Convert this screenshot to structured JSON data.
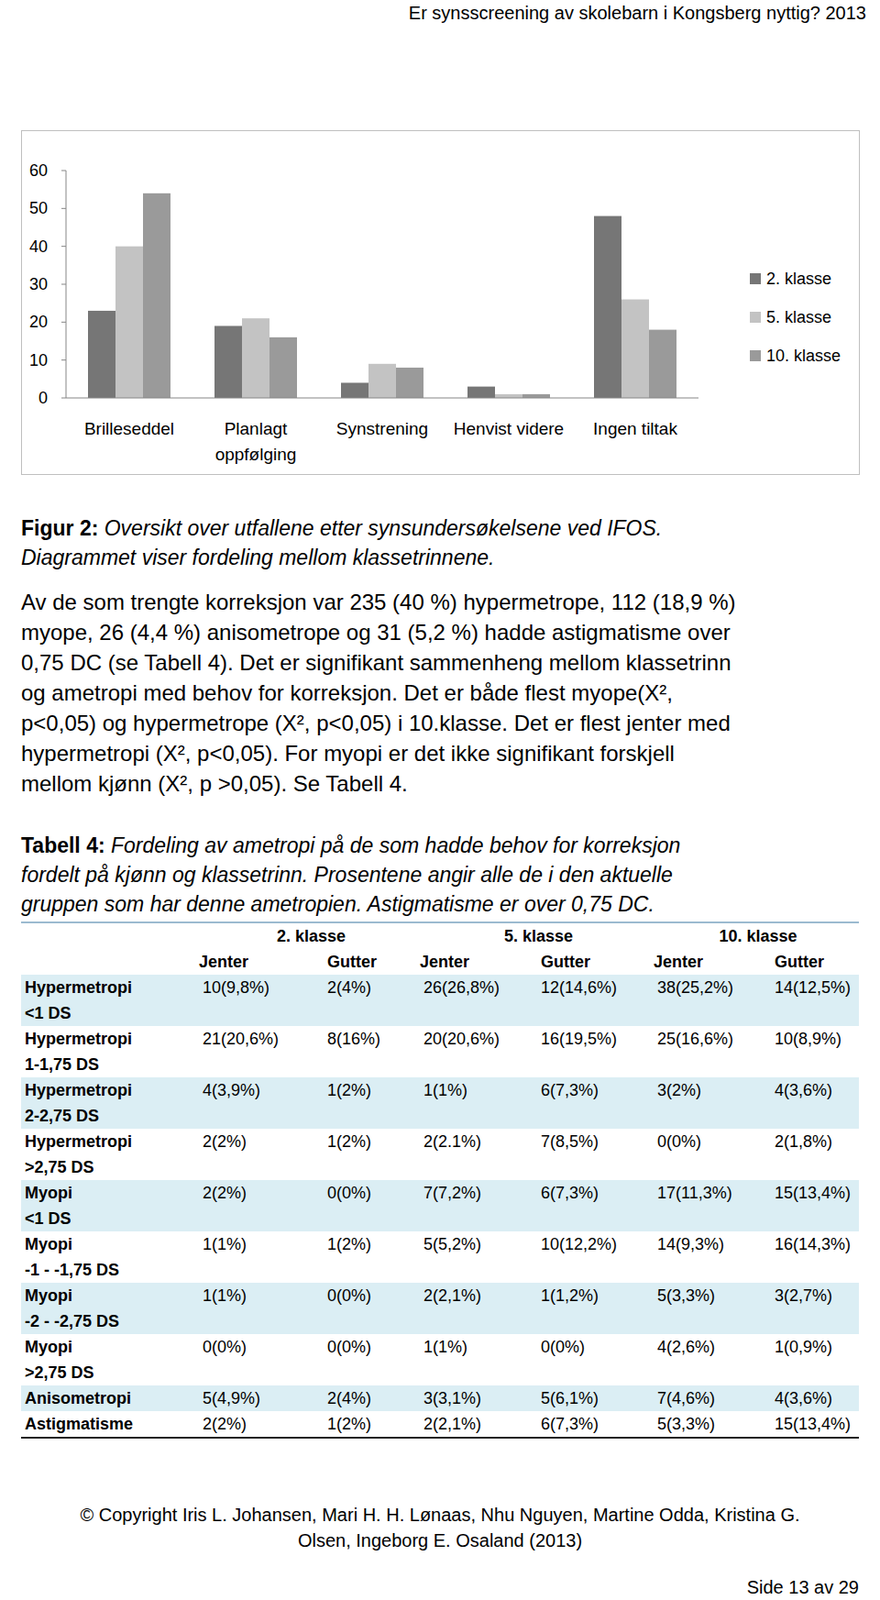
{
  "header": "Er synsscreening av skolebarn i Kongsberg nyttig? 2013",
  "chart_data": {
    "type": "bar",
    "categories": [
      "Brilleseddel",
      "Planlagt oppfølging",
      "Synstrening",
      "Henvist videre",
      "Ingen tiltak"
    ],
    "series": [
      {
        "name": "2. klasse",
        "color": "#767676",
        "values": [
          23,
          19,
          4,
          3,
          48
        ]
      },
      {
        "name": "5. klasse",
        "color": "#c3c3c3",
        "values": [
          40,
          21,
          9,
          1,
          26
        ]
      },
      {
        "name": "10. klasse",
        "color": "#9a9a9a",
        "values": [
          54,
          16,
          8,
          1,
          18
        ]
      }
    ],
    "ylim": [
      0,
      60
    ],
    "yticks": [
      0,
      10,
      20,
      30,
      40,
      50,
      60
    ],
    "grid": false,
    "legend": "right"
  },
  "figure_caption": {
    "label": "Figur 2:",
    "lines": [
      "Oversikt over utfallene etter synsundersøkelsene ved IFOS.",
      "Diagrammet viser fordeling mellom klassetrinnene."
    ]
  },
  "paragraph": [
    "Av de som trengte korreksjon var 235 (40 %) hypermetrope, 112 (18,9 %)",
    "myope, 26 (4,4 %) anisometrope og 31 (5,2 %) hadde astigmatisme over",
    "0,75 DC (se Tabell 4). Det er signifikant sammenheng mellom klassetrinn",
    "og ametropi med behov for korreksjon. Det er både flest myope(X², ",
    "p<0,05) og hypermetrope (X², p<0,05) i 10.klasse. Det er flest jenter med",
    "hypermetropi (X², p<0,05). For myopi er det ikke signifikant forskjell",
    "mellom kjønn (X², p >0,05). Se Tabell 4."
  ],
  "table_caption": {
    "label": "Tabell 4:",
    "lines": [
      "Fordeling av ametropi på de som hadde behov for korreksjon",
      "fordelt på kjønn og klassetrinn. Prosentene angir alle de i den aktuelle",
      "gruppen som har denne ametropien. Astigmatisme er over 0,75 DC."
    ]
  },
  "table": {
    "groups": [
      "2. klasse",
      "5. klasse",
      "10. klasse"
    ],
    "subheaders": [
      "Jenter",
      "Gutter",
      "Jenter",
      "Gutter",
      "Jenter",
      "Gutter"
    ],
    "rows": [
      {
        "label": [
          "Hypermetropi",
          "<1 DS"
        ],
        "cells": [
          "10(9,8%)",
          "2(4%)",
          "26(26,8%)",
          "12(14,6%)",
          "38(25,2%)",
          "14(12,5%)"
        ]
      },
      {
        "label": [
          "Hypermetropi",
          "1-1,75 DS"
        ],
        "cells": [
          "21(20,6%)",
          "8(16%)",
          "20(20,6%)",
          "16(19,5%)",
          "25(16,6%)",
          "10(8,9%)"
        ]
      },
      {
        "label": [
          "Hypermetropi",
          "2-2,75 DS"
        ],
        "cells": [
          "4(3,9%)",
          "1(2%)",
          "1(1%)",
          "6(7,3%)",
          "3(2%)",
          "4(3,6%)"
        ]
      },
      {
        "label": [
          "Hypermetropi",
          ">2,75 DS"
        ],
        "cells": [
          "2(2%)",
          "1(2%)",
          "2(2.1%)",
          "7(8,5%)",
          "0(0%)",
          "2(1,8%)"
        ]
      },
      {
        "label": [
          "Myopi",
          "<1 DS"
        ],
        "cells": [
          "2(2%)",
          "0(0%)",
          "7(7,2%)",
          "6(7,3%)",
          "17(11,3%)",
          "15(13,4%)"
        ]
      },
      {
        "label": [
          "Myopi",
          "-1 - -1,75 DS"
        ],
        "cells": [
          "1(1%)",
          "1(2%)",
          "5(5,2%)",
          "10(12,2%)",
          "14(9,3%)",
          "16(14,3%)"
        ]
      },
      {
        "label": [
          "Myopi",
          "-2 - -2,75 DS"
        ],
        "cells": [
          "1(1%)",
          "0(0%)",
          "2(2,1%)",
          "1(1,2%)",
          "5(3,3%)",
          "3(2,7%)"
        ]
      },
      {
        "label": [
          "Myopi",
          ">2,75 DS"
        ],
        "cells": [
          "0(0%)",
          "0(0%)",
          "1(1%)",
          "0(0%)",
          "4(2,6%)",
          "1(0,9%)"
        ]
      },
      {
        "label": [
          "Anisometropi"
        ],
        "cells": [
          "5(4,9%)",
          "2(4%)",
          "3(3,1%)",
          "5(6,1%)",
          "7(4,6%)",
          "4(3,6%)"
        ]
      },
      {
        "label": [
          "Astigmatisme"
        ],
        "cells": [
          "2(2%)",
          "1(2%)",
          "2(2,1%)",
          "6(7,3%)",
          "5(3,3%)",
          "15(13,4%)"
        ]
      }
    ]
  },
  "footer": {
    "copyright": [
      "© Copyright Iris L. Johansen, Mari H. H. Lønaas, Nhu Nguyen, Martine Odda, Kristina G.",
      "Olsen, Ingeborg E. Osaland (2013)"
    ],
    "page": "Side 13 av 29"
  }
}
